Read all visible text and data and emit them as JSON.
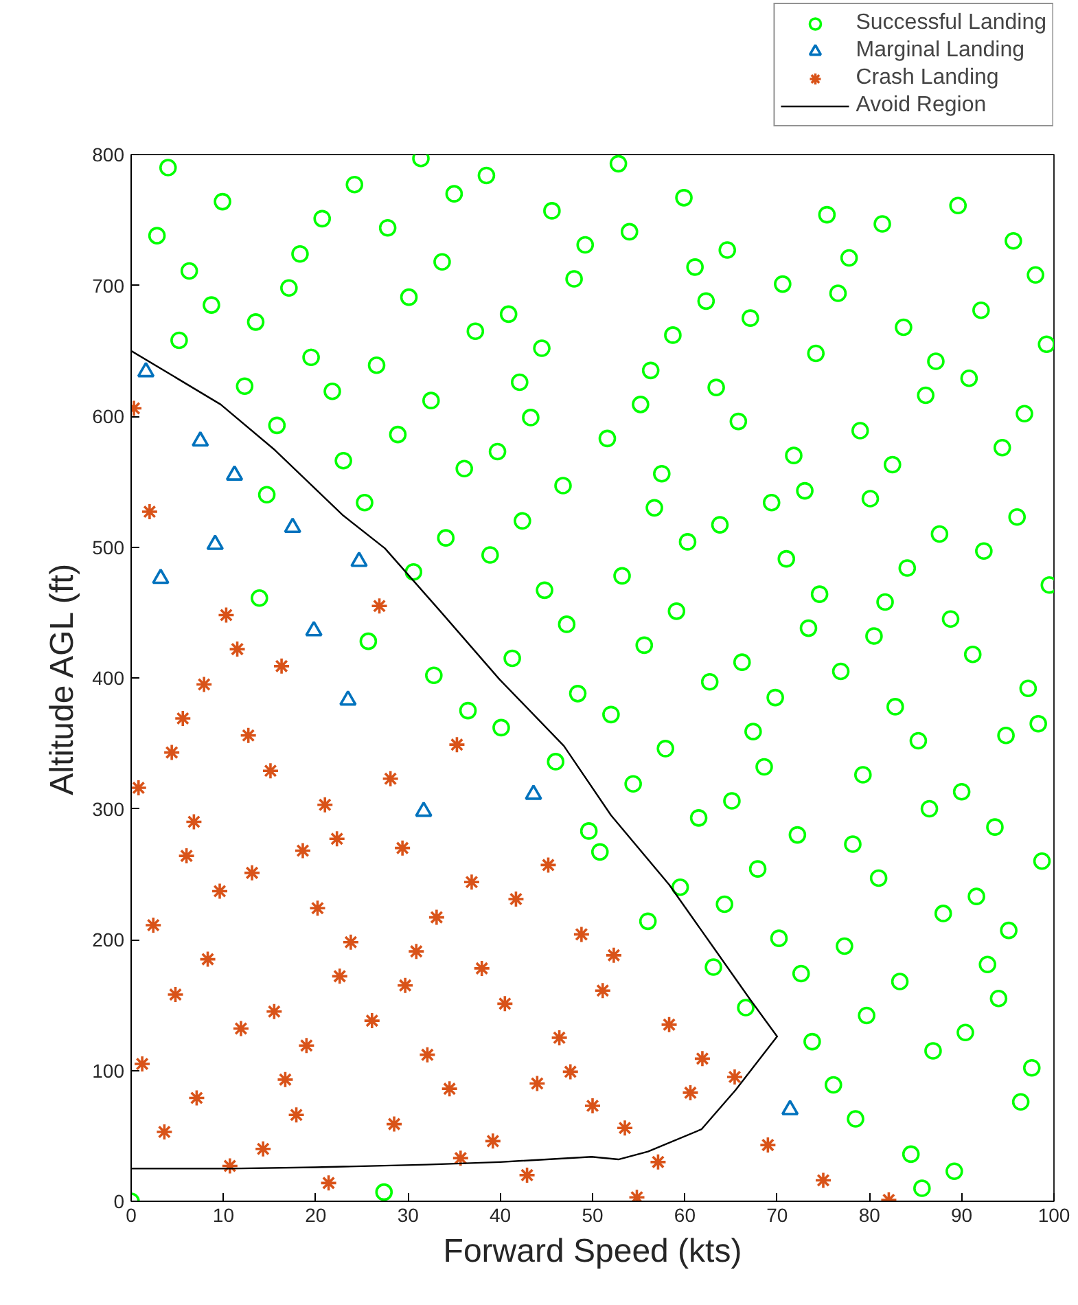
{
  "chart_data": {
    "type": "scatter",
    "xlabel": "Forward Speed (kts)",
    "ylabel": "Altitude AGL (ft)",
    "xlim": [
      0,
      100
    ],
    "ylim": [
      0,
      800
    ],
    "xticks": [
      0,
      10,
      20,
      30,
      40,
      50,
      60,
      70,
      80,
      90,
      100
    ],
    "yticks": [
      0,
      100,
      200,
      300,
      400,
      500,
      600,
      700,
      800
    ],
    "legend": "top right",
    "series": [
      {
        "name": "Successful Landing",
        "type": "scatter",
        "marker": "circle",
        "color": "#00ff00",
        "x": [
          4.0,
          9.9,
          2.8,
          20.7,
          24.2,
          27.8,
          31.4,
          18.3,
          6.3,
          17.1,
          30.1,
          8.7,
          13.5,
          5.2,
          19.5,
          26.6,
          12.3,
          21.8,
          32.5,
          15.8,
          28.9,
          23.0,
          14.7,
          25.3,
          30.6,
          13.9,
          25.7,
          32.8,
          0,
          27.4,
          48.4,
          36.5,
          40.1,
          52.0,
          62.7,
          46.0,
          57.9,
          54.4,
          65.1,
          61.5,
          49.6,
          50.8,
          59.5,
          64.3,
          56.0,
          63.1,
          66.6,
          52.8,
          38.5,
          35.0,
          59.9,
          45.6,
          54.0,
          49.2,
          64.6,
          33.7,
          61.1,
          48.0,
          62.3,
          40.9,
          37.3,
          58.7,
          44.5,
          56.3,
          42.1,
          63.4,
          55.2,
          43.3,
          65.8,
          51.6,
          39.7,
          36.1,
          57.5,
          46.8,
          56.7,
          42.4,
          63.8,
          34.1,
          60.3,
          38.9,
          53.2,
          44.8,
          59.1,
          47.2,
          55.6,
          41.3,
          66.2,
          89.6,
          75.4,
          81.4,
          95.6,
          77.8,
          98.0,
          70.6,
          76.6,
          67.1,
          92.1,
          83.7,
          99.2,
          74.2,
          87.2,
          90.8,
          86.1,
          96.8,
          79.0,
          94.4,
          71.8,
          82.5,
          73.0,
          69.4,
          80.1,
          96.0,
          87.6,
          71.0,
          92.4,
          84.1,
          99.5,
          74.6,
          81.7,
          88.8,
          73.4,
          80.5,
          91.2,
          76.9,
          97.2,
          69.8,
          82.8,
          98.3,
          67.4,
          85.3,
          94.8,
          68.6,
          79.3,
          90.0,
          86.5,
          93.6,
          72.2,
          78.2,
          98.7,
          67.9,
          81.0,
          91.6,
          88.0,
          95.1,
          70.2,
          77.3,
          72.6,
          83.3,
          92.8,
          94.0,
          79.7,
          90.4,
          73.8,
          86.9,
          97.6,
          76.1,
          96.4,
          78.5,
          84.5,
          89.2,
          85.7
        ],
        "values": [
          790,
          764,
          738,
          751,
          777,
          744,
          797,
          724,
          711,
          698,
          691,
          685,
          672,
          658,
          645,
          639,
          623,
          619,
          612,
          593,
          586,
          566,
          540,
          534,
          481,
          461,
          428,
          402,
          0,
          7,
          388,
          375,
          362,
          372,
          397,
          336,
          346,
          319,
          306,
          293,
          283,
          267,
          240,
          227,
          214,
          179,
          148,
          793,
          784,
          770,
          767,
          757,
          741,
          731,
          727,
          718,
          714,
          705,
          688,
          678,
          665,
          662,
          652,
          635,
          626,
          622,
          609,
          599,
          596,
          583,
          573,
          560,
          556,
          547,
          530,
          520,
          517,
          507,
          504,
          494,
          478,
          467,
          451,
          441,
          425,
          415,
          412,
          761,
          754,
          747,
          734,
          721,
          708,
          701,
          694,
          675,
          681,
          668,
          655,
          648,
          642,
          629,
          616,
          602,
          589,
          576,
          570,
          563,
          543,
          534,
          537,
          523,
          510,
          491,
          497,
          484,
          471,
          464,
          458,
          445,
          438,
          432,
          418,
          405,
          392,
          385,
          378,
          365,
          359,
          352,
          356,
          332,
          326,
          313,
          300,
          286,
          280,
          273,
          260,
          254,
          247,
          233,
          220,
          207,
          201,
          195,
          174,
          168,
          181,
          155,
          142,
          129,
          122,
          115,
          102,
          89,
          76,
          63,
          36,
          23,
          10
        ]
      },
      {
        "name": "Marginal Landing",
        "type": "scatter",
        "marker": "triangle",
        "color": "#0072bd",
        "x": [
          1.6,
          7.5,
          11.2,
          9.1,
          3.2,
          17.5,
          24.7,
          19.8,
          23.5,
          31.7,
          43.6,
          71.4
        ],
        "values": [
          634,
          581,
          555,
          502,
          476,
          515,
          489,
          436,
          383,
          298,
          311,
          70
        ]
      },
      {
        "name": "Crash Landing",
        "type": "scatter",
        "marker": "cross",
        "color": "#d95319",
        "x": [
          0.3,
          2.0,
          10.3,
          11.5,
          16.3,
          26.9,
          7.9,
          5.6,
          12.7,
          4.4,
          15.1,
          0.8,
          28.1,
          21.0,
          6.8,
          22.3,
          29.4,
          18.6,
          6.0,
          13.1,
          9.6,
          20.2,
          2.4,
          33.1,
          23.8,
          30.9,
          8.3,
          22.6,
          29.7,
          4.8,
          26.1,
          15.5,
          11.9,
          19.0,
          32.1,
          1.2,
          16.7,
          7.1,
          17.9,
          28.5,
          3.6,
          14.3,
          10.7,
          21.4,
          35.3,
          45.2,
          36.9,
          41.7,
          48.8,
          52.3,
          38.0,
          51.1,
          40.5,
          58.3,
          46.4,
          61.9,
          47.6,
          34.5,
          44.0,
          65.4,
          60.6,
          50.0,
          53.5,
          39.2,
          35.7,
          57.1,
          42.9,
          54.8,
          69.0,
          75.0,
          82.1
        ],
        "values": [
          606,
          527,
          448,
          422,
          409,
          455,
          395,
          369,
          356,
          343,
          329,
          316,
          323,
          303,
          290,
          277,
          270,
          268,
          264,
          251,
          237,
          224,
          211,
          217,
          198,
          191,
          185,
          172,
          165,
          158,
          138,
          145,
          132,
          119,
          112,
          105,
          93,
          79,
          66,
          59,
          53,
          40,
          27,
          14,
          349,
          257,
          244,
          231,
          204,
          188,
          178,
          161,
          151,
          135,
          125,
          109,
          99,
          86,
          90,
          95,
          83,
          73,
          56,
          46,
          33,
          30,
          20,
          3,
          43,
          16,
          1
        ]
      },
      {
        "name": "Avoid Region",
        "type": "line",
        "marker": "none",
        "color": "#000000",
        "x": [
          0,
          9.7,
          15.6,
          23.0,
          27.5,
          33.5,
          39.9,
          46.9,
          52.0,
          58.3,
          63.0,
          67.0,
          70.0,
          65.5,
          61.8,
          56.0,
          52.8,
          49.9,
          40.0,
          32.0,
          20.0,
          10.7,
          0
        ],
        "values": [
          650,
          609,
          574,
          524,
          499,
          451,
          399,
          348,
          295,
          242,
          195,
          155,
          126,
          85,
          55,
          38,
          32,
          34,
          30,
          28,
          26,
          25,
          25
        ]
      }
    ]
  }
}
